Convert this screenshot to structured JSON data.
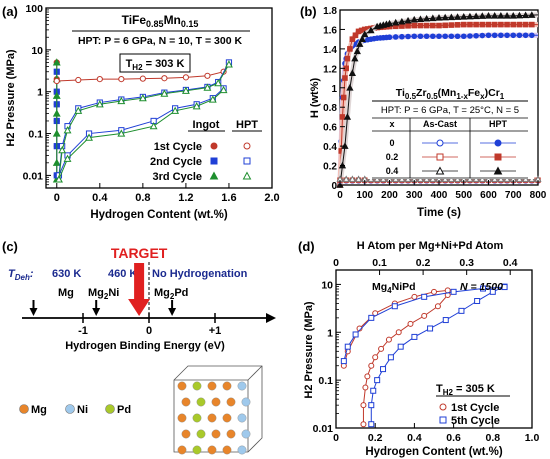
{
  "colors": {
    "red": "#c0392b",
    "blue": "#1f3fd6",
    "green": "#1e8f2e",
    "black": "#111111",
    "navy": "#1b2a8f",
    "target_red": "#e02020",
    "mg": "#e8852a",
    "ni": "#9fc9ec",
    "pd": "#a9c92a"
  },
  "chart_data": [
    {
      "panel": "(a)",
      "type": "line",
      "title": "TiFe0.85Mn0.15",
      "subtitle": "HPT: P = 6 GPa, N = 10, T = 300 K",
      "annotation": "TH2 = 303 K",
      "xlabel": "Hydrogen Content (wt.%)",
      "ylabel": "H2 Pressure (MPa)",
      "xlim": [
        -0.1,
        2.0
      ],
      "ylim": [
        0.005,
        100
      ],
      "yscale": "log",
      "xticks": [
        "0",
        "0.4",
        "0.8",
        "1.2",
        "1.6",
        "2.0"
      ],
      "yticks": [
        "0.01",
        "0.1",
        "1",
        "10",
        "100"
      ],
      "legend_headers": [
        "Ingot",
        "HPT"
      ],
      "legend_rows": [
        "1st Cycle",
        "2nd Cycle",
        "3rd Cycle"
      ],
      "series": [
        {
          "label": "1st Cycle Ingot",
          "x": [
            0.0,
            0.0,
            0.0,
            0.0,
            0.0,
            0.0,
            0.0
          ],
          "y": [
            0.01,
            0.05,
            0.2,
            0.5,
            1,
            2,
            5
          ]
        },
        {
          "label": "2nd Cycle Ingot",
          "x": [
            0.0,
            0.0,
            0.0,
            0.0,
            0.0,
            0.0
          ],
          "y": [
            0.01,
            0.05,
            0.2,
            0.5,
            1,
            3
          ]
        },
        {
          "label": "3rd Cycle Ingot",
          "x": [
            0.0,
            0.0,
            0.0,
            0.0,
            0.0,
            0.0,
            0.0
          ],
          "y": [
            0.008,
            0.02,
            0.1,
            0.3,
            0.8,
            2,
            5
          ]
        },
        {
          "label": "1st Cycle HPT",
          "x": [
            0.0,
            0.2,
            0.4,
            0.6,
            0.8,
            1.0,
            1.2,
            1.4,
            1.55,
            1.6
          ],
          "y": [
            1.8,
            1.9,
            2.0,
            2.0,
            2.05,
            2.1,
            2.2,
            2.4,
            3.0,
            5.0
          ]
        },
        {
          "label": "2nd Cycle HPT abs",
          "x": [
            0.02,
            0.05,
            0.1,
            0.2,
            0.4,
            0.6,
            0.8,
            1.0,
            1.2,
            1.4,
            1.5,
            1.6
          ],
          "y": [
            0.01,
            0.05,
            0.15,
            0.4,
            0.55,
            0.65,
            0.75,
            0.95,
            1.1,
            1.3,
            1.7,
            5.0
          ]
        },
        {
          "label": "2nd Cycle HPT des",
          "x": [
            0.02,
            0.1,
            0.3,
            0.6,
            0.9,
            1.1,
            1.3,
            1.45,
            1.55
          ],
          "y": [
            0.01,
            0.03,
            0.1,
            0.12,
            0.2,
            0.4,
            0.5,
            0.7,
            1.2
          ]
        },
        {
          "label": "3rd Cycle HPT abs",
          "x": [
            0.02,
            0.05,
            0.1,
            0.2,
            0.4,
            0.6,
            0.8,
            1.0,
            1.2,
            1.4,
            1.5,
            1.6
          ],
          "y": [
            0.008,
            0.04,
            0.12,
            0.35,
            0.5,
            0.6,
            0.7,
            0.9,
            1.05,
            1.25,
            1.6,
            4.5
          ]
        },
        {
          "label": "3rd Cycle HPT des",
          "x": [
            0.02,
            0.1,
            0.3,
            0.6,
            0.9,
            1.1,
            1.3,
            1.45,
            1.55
          ],
          "y": [
            0.008,
            0.025,
            0.08,
            0.1,
            0.15,
            0.35,
            0.45,
            0.65,
            1.1
          ]
        }
      ]
    },
    {
      "panel": "(b)",
      "type": "line",
      "title": "Ti0.5Zr0.5(Mn1-xFex)Cr1",
      "subtitle": "HPT: P = 6 GPa, T = 25°C, N = 5",
      "xlabel": "Time (s)",
      "ylabel": "H (wt%)",
      "xlim": [
        0,
        800
      ],
      "ylim": [
        0,
        1.8
      ],
      "xticks": [
        "0",
        "100",
        "200",
        "300",
        "400",
        "500",
        "600",
        "700",
        "800"
      ],
      "yticks": [
        "0",
        "0.2",
        "0.4",
        "0.6",
        "0.8",
        "1",
        "1.2",
        "1.4",
        "1.6",
        "1.8"
      ],
      "table_headers": [
        "x",
        "As-Cast",
        "HPT"
      ],
      "table_rows": [
        "0",
        "0.2",
        "0.4"
      ],
      "series": [
        {
          "label": "x=0 HPT",
          "x": [
            0,
            10,
            20,
            30,
            50,
            75,
            100,
            150,
            200,
            300,
            400,
            500,
            600,
            700,
            800
          ],
          "y": [
            0,
            0.9,
            1.25,
            1.35,
            1.43,
            1.47,
            1.49,
            1.51,
            1.52,
            1.53,
            1.53,
            1.53,
            1.54,
            1.54,
            1.54
          ]
        },
        {
          "label": "x=0.2 HPT",
          "x": [
            0,
            10,
            20,
            30,
            50,
            75,
            100,
            150,
            200,
            300,
            400,
            500,
            600,
            700,
            800
          ],
          "y": [
            0,
            0.7,
            1.1,
            1.3,
            1.5,
            1.58,
            1.6,
            1.62,
            1.63,
            1.64,
            1.64,
            1.65,
            1.65,
            1.65,
            1.65
          ]
        },
        {
          "label": "x=0.4 HPT",
          "x": [
            0,
            20,
            40,
            60,
            80,
            100,
            150,
            200,
            300,
            400,
            500,
            600,
            700,
            800
          ],
          "y": [
            0,
            0.4,
            1.0,
            1.3,
            1.45,
            1.55,
            1.63,
            1.66,
            1.7,
            1.72,
            1.73,
            1.74,
            1.74,
            1.75
          ]
        },
        {
          "label": "x=0 As-Cast",
          "x": [
            0,
            100,
            200,
            300,
            400,
            500,
            600,
            700,
            800
          ],
          "y": [
            0.04,
            0.04,
            0.04,
            0.04,
            0.04,
            0.04,
            0.04,
            0.04,
            0.04
          ]
        },
        {
          "label": "x=0.2 As-Cast",
          "x": [
            0,
            100,
            200,
            300,
            400,
            500,
            600,
            700,
            800
          ],
          "y": [
            0.05,
            0.05,
            0.05,
            0.05,
            0.05,
            0.05,
            0.05,
            0.05,
            0.05
          ]
        },
        {
          "label": "x=0.4 As-Cast",
          "x": [
            0,
            100,
            200,
            300,
            400,
            500,
            600,
            700,
            800
          ],
          "y": [
            0.06,
            0.06,
            0.06,
            0.06,
            0.06,
            0.06,
            0.06,
            0.06,
            0.06
          ]
        }
      ]
    },
    {
      "panel": "(c)",
      "type": "diagram",
      "target_label": "TARGET",
      "tdeh_label": "TDeh:",
      "axis_label": "Hydrogen Binding Energy (eV)",
      "ticks": [
        "-1",
        "0",
        "+1"
      ],
      "markers": [
        {
          "temp": "630 K",
          "compound": "Mg",
          "energy": -1.75
        },
        {
          "temp": "460 K",
          "compound": "Mg2Ni",
          "energy": -0.8
        },
        {
          "temp": "No Hydrogenation",
          "compound": "Mg2Pd",
          "energy": 0.35
        }
      ],
      "target_energy": -0.15,
      "atom_legend": [
        "Mg",
        "Ni",
        "Pd"
      ]
    },
    {
      "panel": "(d)",
      "type": "line",
      "annotation_material": "Mg4NiPd",
      "annotation_n": "N = 1500",
      "annotation_t": "TH2 = 305 K",
      "top_xlabel": "H Atom per Mg+Ni+Pd Atom",
      "xlabel": "Hydrogen Content (wt.%)",
      "ylabel": "H2 Pressure (MPa)",
      "xlim": [
        0,
        1.0
      ],
      "ylim": [
        0.01,
        20
      ],
      "yscale": "log",
      "xticks": [
        "0",
        "0.2",
        "0.4",
        "0.6",
        "0.8",
        "1.0"
      ],
      "top_xticks": [
        "0",
        "0.1",
        "0.2",
        "0.3",
        "0.4"
      ],
      "top_xlim": [
        0,
        0.45
      ],
      "yticks": [
        "0.01",
        "0.1",
        "1",
        "10"
      ],
      "legend": [
        "1st Cycle",
        "5th Cycle"
      ],
      "series": [
        {
          "label": "1st Cycle",
          "x": [
            0.14,
            0.14,
            0.15,
            0.16,
            0.18,
            0.2,
            0.23,
            0.27,
            0.32,
            0.38,
            0.45,
            0.52,
            0.57,
            0.57,
            0.5,
            0.4,
            0.3,
            0.2,
            0.12,
            0.06,
            0.04
          ],
          "y": [
            0.012,
            0.03,
            0.07,
            0.12,
            0.2,
            0.3,
            0.45,
            0.7,
            1.0,
            1.5,
            2.2,
            3.5,
            6.0,
            7.5,
            7.0,
            5.5,
            4.0,
            2.5,
            1.2,
            0.4,
            0.2
          ]
        },
        {
          "label": "5th Cycle",
          "x": [
            0.18,
            0.18,
            0.19,
            0.21,
            0.24,
            0.28,
            0.33,
            0.4,
            0.48,
            0.56,
            0.64,
            0.72,
            0.8,
            0.86,
            0.86,
            0.75,
            0.6,
            0.45,
            0.3,
            0.18,
            0.1,
            0.06,
            0.04
          ],
          "y": [
            0.012,
            0.03,
            0.06,
            0.1,
            0.17,
            0.3,
            0.5,
            0.8,
            1.2,
            1.8,
            2.8,
            4.5,
            7.0,
            9.0,
            8.8,
            8.2,
            7.0,
            5.5,
            3.5,
            2.0,
            0.9,
            0.5,
            0.25
          ]
        }
      ]
    }
  ]
}
